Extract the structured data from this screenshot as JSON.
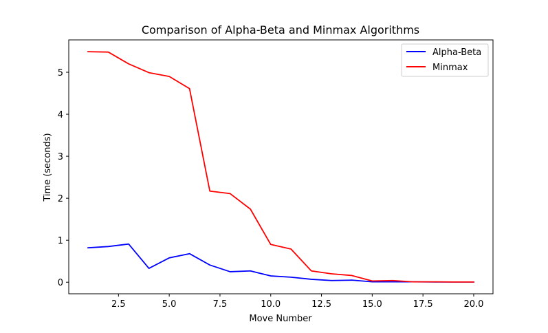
{
  "chart_data": {
    "type": "line",
    "title": "Comparison of Alpha-Beta and Minmax Algorithms",
    "xlabel": "Move Number",
    "ylabel": "Time (seconds)",
    "xlim": [
      0.05,
      20.95
    ],
    "ylim": [
      -0.275,
      5.77
    ],
    "xticks": [
      2.5,
      5.0,
      7.5,
      10.0,
      12.5,
      15.0,
      17.5,
      20.0
    ],
    "xtick_labels": [
      "2.5",
      "5.0",
      "7.5",
      "10.0",
      "12.5",
      "15.0",
      "17.5",
      "20.0"
    ],
    "yticks": [
      0,
      1,
      2,
      3,
      4,
      5
    ],
    "ytick_labels": [
      "0",
      "1",
      "2",
      "3",
      "4",
      "5"
    ],
    "grid": false,
    "legend": "top-right",
    "x": [
      1,
      2,
      3,
      4,
      5,
      6,
      7,
      8,
      9,
      10,
      11,
      12,
      13,
      14,
      15,
      16,
      17,
      18,
      19,
      20
    ],
    "series": [
      {
        "name": "Alpha-Beta",
        "color": "#0000ff",
        "values": [
          0.82,
          0.85,
          0.91,
          0.33,
          0.58,
          0.68,
          0.41,
          0.25,
          0.27,
          0.15,
          0.12,
          0.07,
          0.04,
          0.05,
          0.01,
          0.01,
          0.01,
          0.005,
          0.005,
          0.005
        ]
      },
      {
        "name": "Minmax",
        "color": "#ff0000",
        "values": [
          5.49,
          5.48,
          5.2,
          4.99,
          4.9,
          4.61,
          2.17,
          2.11,
          1.74,
          0.9,
          0.79,
          0.27,
          0.2,
          0.16,
          0.03,
          0.04,
          0.01,
          0.01,
          0.005,
          0.005
        ]
      }
    ]
  }
}
